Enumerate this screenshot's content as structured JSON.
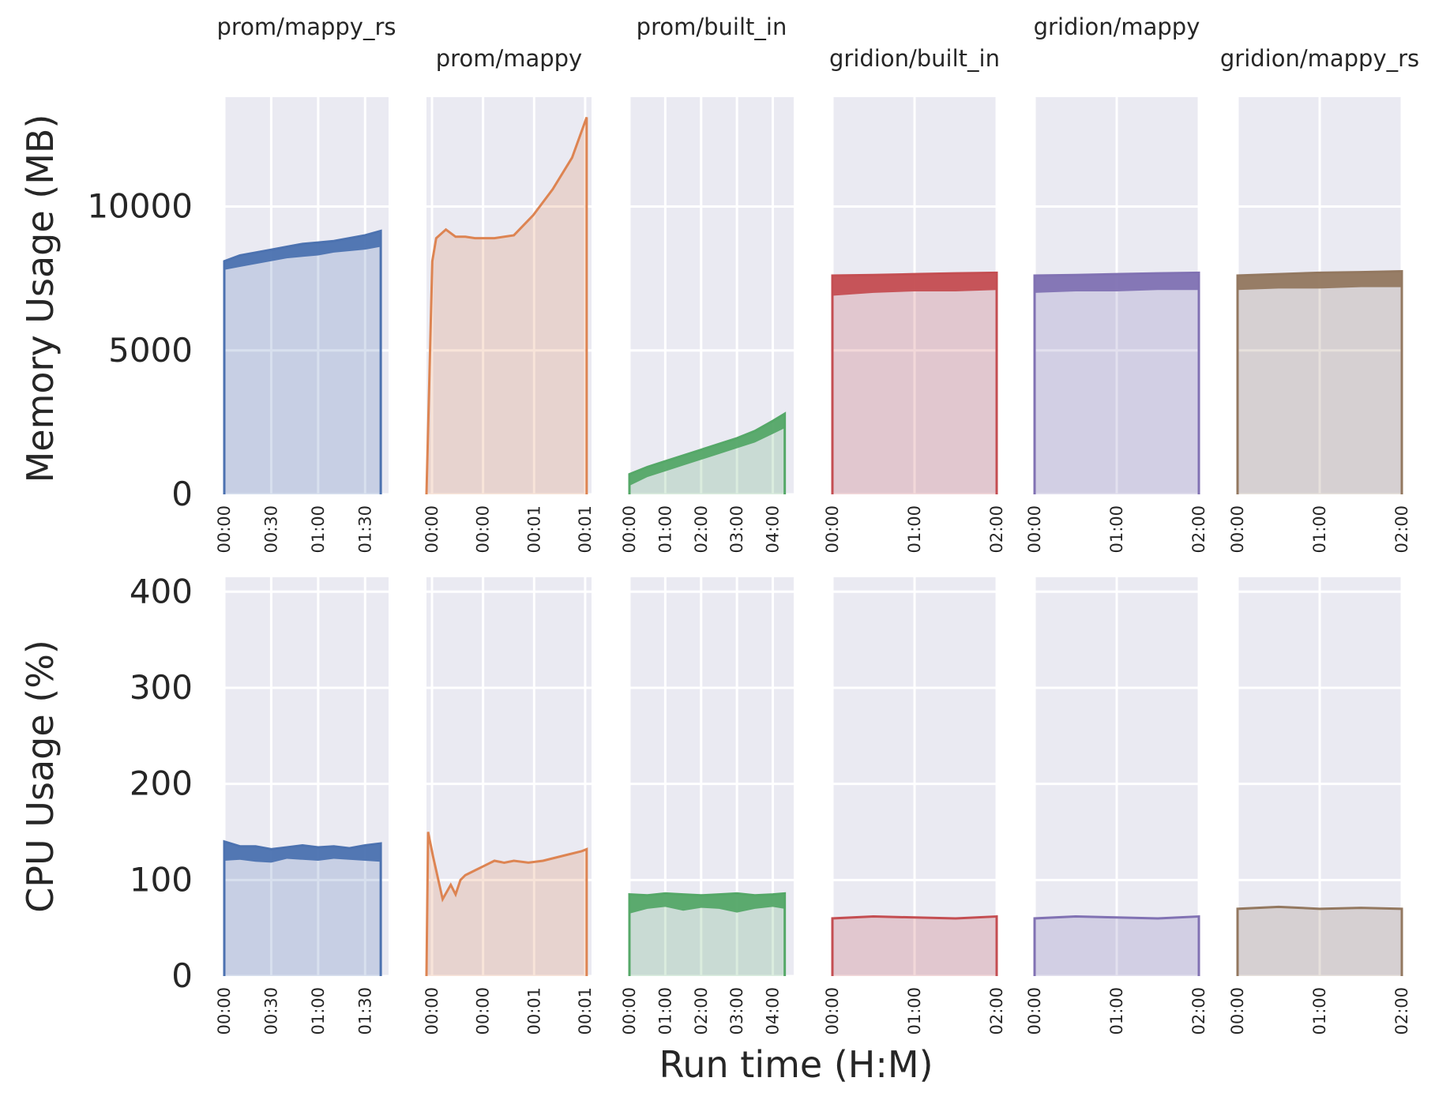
{
  "figure": {
    "xlabel": "Run time (H:M)",
    "row_labels": [
      "Memory Usage (MB)",
      "CPU Usage (%)"
    ],
    "background": "#ffffff",
    "plot_background": "#eaeaf2",
    "grid_color": "#ffffff"
  },
  "chart_data": [
    {
      "type": "area",
      "panel": "prom/mappy_rs",
      "row": "memory",
      "color": "#4c72b0",
      "title": "prom/mappy_rs",
      "ylabel": "Memory Usage (MB)",
      "xlabel": "",
      "x": [
        "00:00",
        "00:10",
        "00:20",
        "00:30",
        "00:40",
        "00:50",
        "01:00",
        "01:10",
        "01:20",
        "01:30",
        "01:40"
      ],
      "y": [
        8100,
        8300,
        8400,
        8500,
        8600,
        8700,
        8750,
        8800,
        8900,
        9000,
        9150
      ],
      "y_low": [
        7800,
        7900,
        8000,
        8100,
        8200,
        8250,
        8300,
        8400,
        8450,
        8500,
        8600
      ],
      "xticks": [
        "00:00",
        "00:30",
        "01:00",
        "01:30"
      ],
      "xlim_min": [
        0,
        105
      ],
      "ylim": [
        0,
        13800
      ],
      "yticks": [
        0,
        5000,
        10000
      ],
      "grid": true
    },
    {
      "type": "line",
      "panel": "prom/mappy",
      "row": "memory",
      "color": "#dd8452",
      "title": "prom/mappy",
      "ylabel": "",
      "xlabel": "",
      "x": [
        "00:00.0",
        "00:03.6",
        "00:06.0",
        "00:12.0",
        "00:18.0",
        "00:24.0",
        "00:30.0",
        "00:36.0",
        "00:42.0",
        "00:54.0",
        "01:06.0",
        "01:18.0",
        "01:30.0",
        "01:39.0"
      ],
      "y": [
        0,
        8100,
        8900,
        9200,
        8950,
        8950,
        8900,
        8900,
        8900,
        9000,
        9700,
        10600,
        11700,
        13100
      ],
      "xticks": [
        "00:00",
        "00:00",
        "00:01",
        "00:01"
      ],
      "xlim_min": [
        0,
        1.7
      ],
      "ylim": [
        0,
        13800
      ],
      "yticks": [
        0,
        5000,
        10000
      ],
      "grid": true
    },
    {
      "type": "area",
      "panel": "prom/built_in",
      "row": "memory",
      "color": "#55a868",
      "title": "prom/built_in",
      "ylabel": "",
      "xlabel": "",
      "x": [
        "00:00",
        "00:30",
        "01:00",
        "01:30",
        "02:00",
        "02:30",
        "03:00",
        "03:30",
        "04:00",
        "04:20"
      ],
      "y": [
        700,
        950,
        1150,
        1350,
        1550,
        1750,
        1950,
        2200,
        2550,
        2800
      ],
      "y_low": [
        300,
        600,
        800,
        1000,
        1200,
        1400,
        1600,
        1800,
        2100,
        2300
      ],
      "xticks": [
        "00:00",
        "01:00",
        "02:00",
        "03:00",
        "04:00"
      ],
      "xlim_min": [
        0,
        275
      ],
      "ylim": [
        0,
        13800
      ],
      "yticks": [
        0,
        5000,
        10000
      ],
      "grid": true
    },
    {
      "type": "area",
      "panel": "gridion/built_in",
      "row": "memory",
      "color": "#c44e52",
      "title": "gridion/built_in",
      "ylabel": "",
      "xlabel": "",
      "x": [
        "00:00",
        "00:30",
        "01:00",
        "01:30",
        "02:00"
      ],
      "y": [
        7600,
        7620,
        7650,
        7680,
        7700
      ],
      "y_low": [
        6900,
        7000,
        7050,
        7050,
        7100
      ],
      "xticks": [
        "00:00",
        "01:00",
        "02:00"
      ],
      "xlim_min": [
        0,
        120
      ],
      "ylim": [
        0,
        13800
      ],
      "yticks": [
        0,
        5000,
        10000
      ],
      "grid": true
    },
    {
      "type": "area",
      "panel": "gridion/mappy",
      "row": "memory",
      "color": "#8172b3",
      "title": "gridion/mappy",
      "ylabel": "",
      "xlabel": "",
      "x": [
        "00:00",
        "00:30",
        "01:00",
        "01:30",
        "02:00"
      ],
      "y": [
        7600,
        7620,
        7650,
        7680,
        7700
      ],
      "y_low": [
        7000,
        7050,
        7050,
        7100,
        7100
      ],
      "xticks": [
        "00:00",
        "01:00",
        "02:00"
      ],
      "xlim_min": [
        0,
        120
      ],
      "ylim": [
        0,
        13800
      ],
      "yticks": [
        0,
        5000,
        10000
      ],
      "grid": true
    },
    {
      "type": "area",
      "panel": "gridion/mappy_rs",
      "row": "memory",
      "color": "#937860",
      "title": "gridion/mappy_rs",
      "ylabel": "",
      "xlabel": "",
      "x": [
        "00:00",
        "00:30",
        "01:00",
        "01:30",
        "02:00"
      ],
      "y": [
        7600,
        7650,
        7700,
        7720,
        7750
      ],
      "y_low": [
        7100,
        7150,
        7150,
        7200,
        7200
      ],
      "xticks": [
        "00:00",
        "01:00",
        "02:00"
      ],
      "xlim_min": [
        0,
        120
      ],
      "ylim": [
        0,
        13800
      ],
      "yticks": [
        0,
        5000,
        10000
      ],
      "grid": true
    },
    {
      "type": "area",
      "panel": "prom/mappy_rs",
      "row": "cpu",
      "color": "#4c72b0",
      "title": "",
      "ylabel": "CPU Usage (%)",
      "xlabel": "",
      "x": [
        "00:00",
        "00:10",
        "00:20",
        "00:30",
        "00:40",
        "00:50",
        "01:00",
        "01:10",
        "01:20",
        "01:30",
        "01:40"
      ],
      "y": [
        140,
        135,
        135,
        132,
        134,
        136,
        134,
        135,
        133,
        136,
        138
      ],
      "y_low": [
        120,
        121,
        119,
        118,
        122,
        121,
        120,
        122,
        121,
        120,
        119
      ],
      "xticks": [
        "00:00",
        "00:30",
        "01:00",
        "01:30"
      ],
      "xlim_min": [
        0,
        105
      ],
      "ylim": [
        0,
        415
      ],
      "yticks": [
        0,
        100,
        200,
        300,
        400
      ],
      "grid": true
    },
    {
      "type": "line",
      "panel": "prom/mappy",
      "row": "cpu",
      "color": "#dd8452",
      "title": "",
      "ylabel": "",
      "xlabel": "",
      "x": [
        "00:00.0",
        "00:01.0",
        "00:04.0",
        "00:10.0",
        "00:15.0",
        "00:18.0",
        "00:21.0",
        "00:24.0",
        "00:30.0",
        "00:36.0",
        "00:42.0",
        "00:48.0",
        "00:54.0",
        "01:03.0",
        "01:12.0",
        "01:24.0",
        "01:36.0",
        "01:39.0"
      ],
      "y": [
        0,
        150,
        125,
        80,
        95,
        85,
        100,
        105,
        110,
        115,
        120,
        118,
        120,
        118,
        120,
        125,
        130,
        132
      ],
      "xticks": [
        "00:00",
        "00:00",
        "00:01",
        "00:01"
      ],
      "xlim_min": [
        0,
        1.7
      ],
      "ylim": [
        0,
        415
      ],
      "yticks": [
        0,
        100,
        200,
        300,
        400
      ],
      "grid": true
    },
    {
      "type": "area",
      "panel": "prom/built_in",
      "row": "cpu",
      "color": "#55a868",
      "title": "",
      "ylabel": "",
      "xlabel": "",
      "x": [
        "00:00",
        "00:30",
        "01:00",
        "01:30",
        "02:00",
        "02:30",
        "03:00",
        "03:30",
        "04:00",
        "04:20"
      ],
      "y": [
        85,
        84,
        86,
        85,
        84,
        85,
        86,
        84,
        85,
        86
      ],
      "y_low": [
        65,
        70,
        72,
        68,
        71,
        70,
        66,
        70,
        72,
        70
      ],
      "xticks": [
        "00:00",
        "01:00",
        "02:00",
        "03:00",
        "04:00"
      ],
      "xlim_min": [
        0,
        275
      ],
      "ylim": [
        0,
        415
      ],
      "yticks": [
        0,
        100,
        200,
        300,
        400
      ],
      "grid": true
    },
    {
      "type": "area",
      "panel": "gridion/built_in",
      "row": "cpu",
      "color": "#c44e52",
      "title": "",
      "ylabel": "",
      "xlabel": "",
      "x": [
        "00:00",
        "00:30",
        "01:00",
        "01:30",
        "02:00"
      ],
      "y": [
        60,
        62,
        61,
        60,
        62
      ],
      "xticks": [
        "00:00",
        "01:00",
        "02:00"
      ],
      "xlim_min": [
        0,
        120
      ],
      "ylim": [
        0,
        415
      ],
      "yticks": [
        0,
        100,
        200,
        300,
        400
      ],
      "grid": true
    },
    {
      "type": "area",
      "panel": "gridion/mappy",
      "row": "cpu",
      "color": "#8172b3",
      "title": "",
      "ylabel": "",
      "xlabel": "",
      "x": [
        "00:00",
        "00:30",
        "01:00",
        "01:30",
        "02:00"
      ],
      "y": [
        60,
        62,
        61,
        60,
        62
      ],
      "xticks": [
        "00:00",
        "01:00",
        "02:00"
      ],
      "xlim_min": [
        0,
        120
      ],
      "ylim": [
        0,
        415
      ],
      "yticks": [
        0,
        100,
        200,
        300,
        400
      ],
      "grid": true
    },
    {
      "type": "area",
      "panel": "gridion/mappy_rs",
      "row": "cpu",
      "color": "#937860",
      "title": "",
      "ylabel": "",
      "xlabel": "",
      "x": [
        "00:00",
        "00:30",
        "01:00",
        "01:30",
        "02:00"
      ],
      "y": [
        70,
        72,
        70,
        71,
        70
      ],
      "xticks": [
        "00:00",
        "01:00",
        "02:00"
      ],
      "xlim_min": [
        0,
        120
      ],
      "ylim": [
        0,
        415
      ],
      "yticks": [
        0,
        100,
        200,
        300,
        400
      ],
      "grid": true
    }
  ]
}
